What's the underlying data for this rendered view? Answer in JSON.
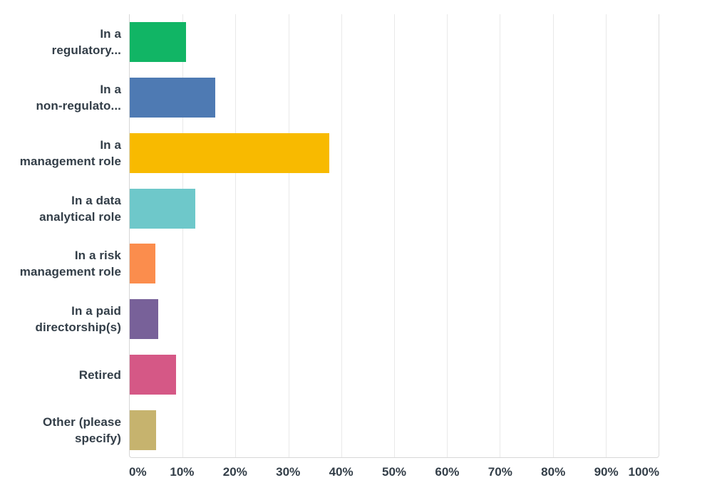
{
  "chart_data": {
    "type": "bar",
    "orientation": "horizontal",
    "title": "",
    "xlabel": "",
    "ylabel": "",
    "xlim": [
      0,
      100
    ],
    "grid": "vertical",
    "legend": "none",
    "x_ticks": [
      {
        "value": 0,
        "label": "0%"
      },
      {
        "value": 10,
        "label": "10%"
      },
      {
        "value": 20,
        "label": "20%"
      },
      {
        "value": 30,
        "label": "30%"
      },
      {
        "value": 40,
        "label": "40%"
      },
      {
        "value": 50,
        "label": "50%"
      },
      {
        "value": 60,
        "label": "60%"
      },
      {
        "value": 70,
        "label": "70%"
      },
      {
        "value": 80,
        "label": "80%"
      },
      {
        "value": 90,
        "label": "90%"
      },
      {
        "value": 100,
        "label": "100%"
      }
    ],
    "categories": [
      {
        "label": "In a regulatory...",
        "label_lines": [
          "In a",
          "regulatory..."
        ],
        "value": 10.6,
        "color": "#11b565"
      },
      {
        "label": "In a non-regulato...",
        "label_lines": [
          "In a",
          "non-regulato..."
        ],
        "value": 16.2,
        "color": "#4e7ab3"
      },
      {
        "label": "In a management role",
        "label_lines": [
          "In a",
          "management role"
        ],
        "value": 37.7,
        "color": "#f8ba00"
      },
      {
        "label": "In a data analytical role",
        "label_lines": [
          "In a data",
          "analytical role"
        ],
        "value": 12.4,
        "color": "#6ec8ca"
      },
      {
        "label": "In a risk management role",
        "label_lines": [
          "In a risk",
          "management role"
        ],
        "value": 4.8,
        "color": "#fb8d4d"
      },
      {
        "label": "In a paid directorship(s)",
        "label_lines": [
          "In a paid",
          "directorship(s)"
        ],
        "value": 5.4,
        "color": "#786199"
      },
      {
        "label": "Retired",
        "label_lines": [
          "Retired"
        ],
        "value": 8.7,
        "color": "#d55886"
      },
      {
        "label": "Other (please specify)",
        "label_lines": [
          "Other (please",
          "specify)"
        ],
        "value": 5.0,
        "color": "#c6b36e"
      }
    ],
    "colors": {
      "text": "#333e48",
      "gridline": "#e9e9e9",
      "axis_border": "#d7d7d7",
      "background": "#ffffff"
    }
  }
}
